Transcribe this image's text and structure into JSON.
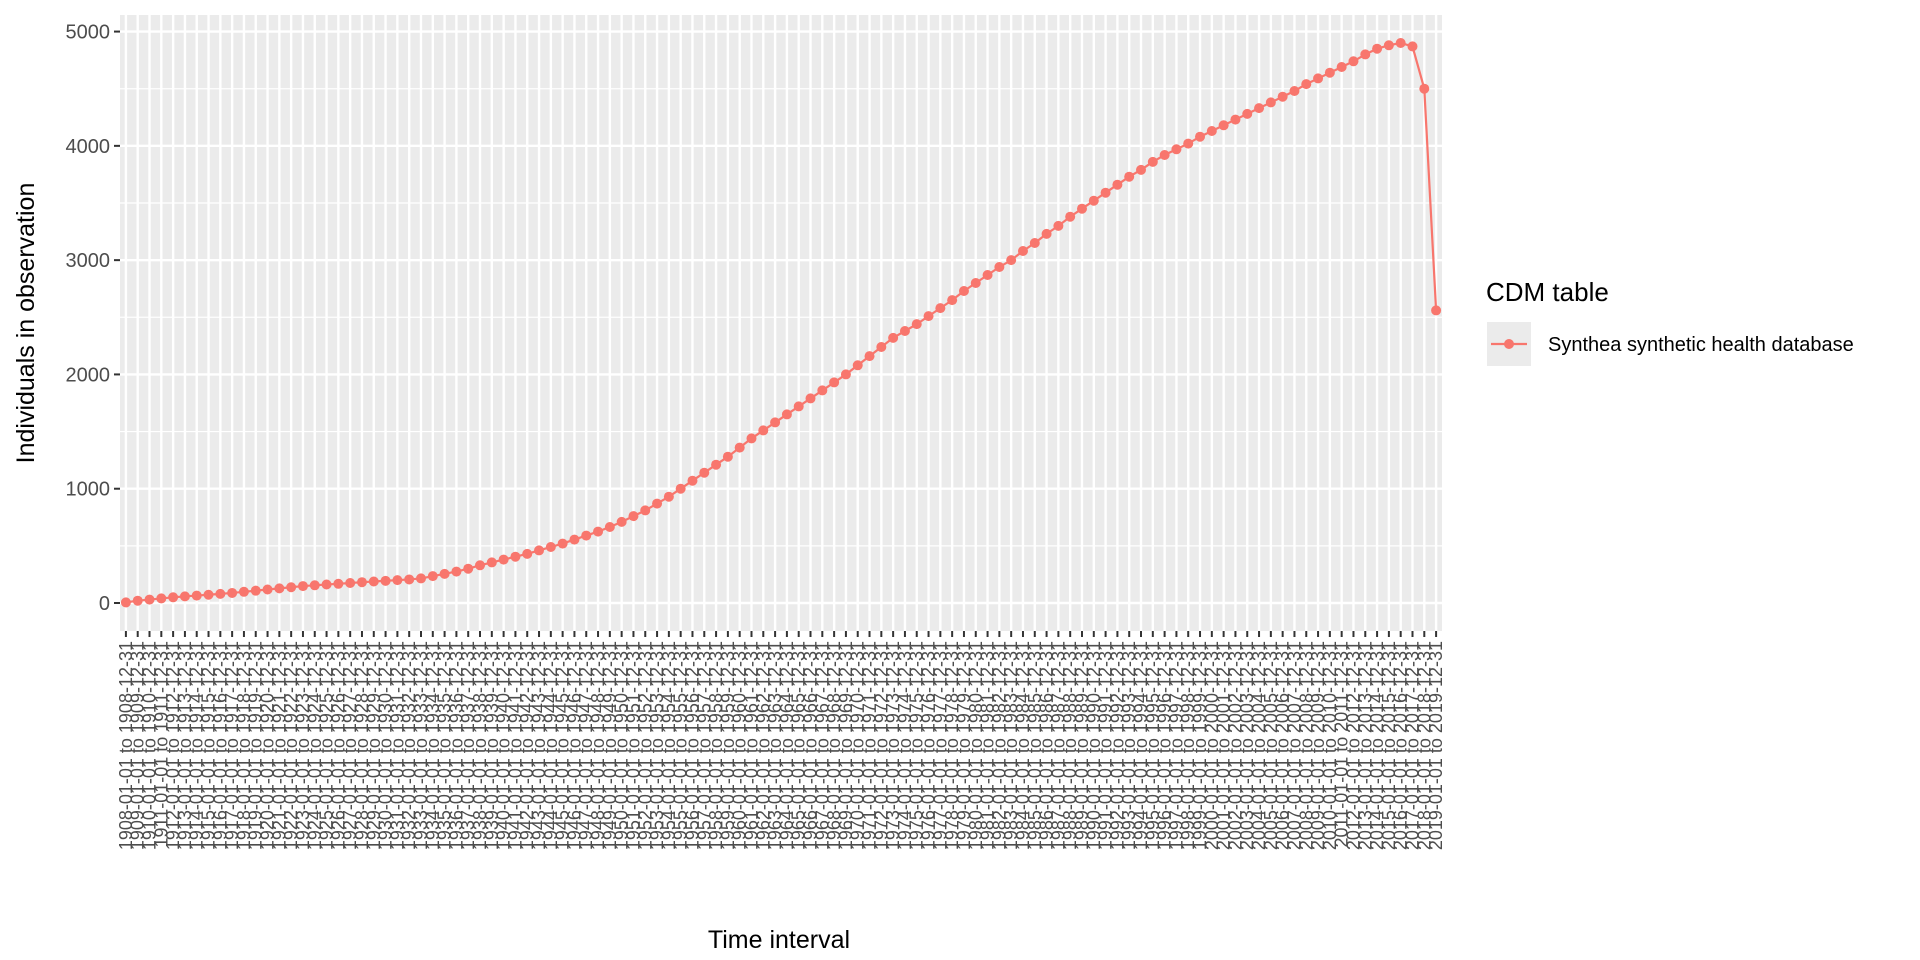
{
  "chart_data": {
    "type": "line",
    "x_label": "Time interval",
    "y_label": "Individuals in observation",
    "legend_title": "CDM table",
    "legend_position": "right",
    "grid": true,
    "ylim": [
      -245,
      5145
    ],
    "yticks": [
      0,
      1000,
      2000,
      3000,
      4000,
      5000
    ],
    "categories": [
      "1908-01-01 to 1908-12-31",
      "1909-01-01 to 1909-12-31",
      "1910-01-01 to 1910-12-31",
      "1911-01-01 to 1911-12-31",
      "1912-01-01 to 1912-12-31",
      "1913-01-01 to 1913-12-31",
      "1914-01-01 to 1914-12-31",
      "1915-01-01 to 1915-12-31",
      "1916-01-01 to 1916-12-31",
      "1917-01-01 to 1917-12-31",
      "1918-01-01 to 1918-12-31",
      "1919-01-01 to 1919-12-31",
      "1920-01-01 to 1920-12-31",
      "1921-01-01 to 1921-12-31",
      "1922-01-01 to 1922-12-31",
      "1923-01-01 to 1923-12-31",
      "1924-01-01 to 1924-12-31",
      "1925-01-01 to 1925-12-31",
      "1926-01-01 to 1926-12-31",
      "1927-01-01 to 1927-12-31",
      "1928-01-01 to 1928-12-31",
      "1929-01-01 to 1929-12-31",
      "1930-01-01 to 1930-12-31",
      "1931-01-01 to 1931-12-31",
      "1932-01-01 to 1932-12-31",
      "1933-01-01 to 1933-12-31",
      "1934-01-01 to 1934-12-31",
      "1935-01-01 to 1935-12-31",
      "1936-01-01 to 1936-12-31",
      "1937-01-01 to 1937-12-31",
      "1938-01-01 to 1938-12-31",
      "1939-01-01 to 1939-12-31",
      "1940-01-01 to 1940-12-31",
      "1941-01-01 to 1941-12-31",
      "1942-01-01 to 1942-12-31",
      "1943-01-01 to 1943-12-31",
      "1944-01-01 to 1944-12-31",
      "1945-01-01 to 1945-12-31",
      "1946-01-01 to 1946-12-31",
      "1947-01-01 to 1947-12-31",
      "1948-01-01 to 1948-12-31",
      "1949-01-01 to 1949-12-31",
      "1950-01-01 to 1950-12-31",
      "1951-01-01 to 1951-12-31",
      "1952-01-01 to 1952-12-31",
      "1953-01-01 to 1953-12-31",
      "1954-01-01 to 1954-12-31",
      "1955-01-01 to 1955-12-31",
      "1956-01-01 to 1956-12-31",
      "1957-01-01 to 1957-12-31",
      "1958-01-01 to 1958-12-31",
      "1959-01-01 to 1959-12-31",
      "1960-01-01 to 1960-12-31",
      "1961-01-01 to 1961-12-31",
      "1962-01-01 to 1962-12-31",
      "1963-01-01 to 1963-12-31",
      "1964-01-01 to 1964-12-31",
      "1965-01-01 to 1965-12-31",
      "1966-01-01 to 1966-12-31",
      "1967-01-01 to 1967-12-31",
      "1968-01-01 to 1968-12-31",
      "1969-01-01 to 1969-12-31",
      "1970-01-01 to 1970-12-31",
      "1971-01-01 to 1971-12-31",
      "1972-01-01 to 1972-12-31",
      "1973-01-01 to 1973-12-31",
      "1974-01-01 to 1974-12-31",
      "1975-01-01 to 1975-12-31",
      "1976-01-01 to 1976-12-31",
      "1977-01-01 to 1977-12-31",
      "1978-01-01 to 1978-12-31",
      "1979-01-01 to 1979-12-31",
      "1980-01-01 to 1980-12-31",
      "1981-01-01 to 1981-12-31",
      "1982-01-01 to 1982-12-31",
      "1983-01-01 to 1983-12-31",
      "1984-01-01 to 1984-12-31",
      "1985-01-01 to 1985-12-31",
      "1986-01-01 to 1986-12-31",
      "1987-01-01 to 1987-12-31",
      "1988-01-01 to 1988-12-31",
      "1989-01-01 to 1989-12-31",
      "1990-01-01 to 1990-12-31",
      "1991-01-01 to 1991-12-31",
      "1992-01-01 to 1992-12-31",
      "1993-01-01 to 1993-12-31",
      "1994-01-01 to 1994-12-31",
      "1995-01-01 to 1995-12-31",
      "1996-01-01 to 1996-12-31",
      "1997-01-01 to 1997-12-31",
      "1998-01-01 to 1998-12-31",
      "1999-01-01 to 1999-12-31",
      "2000-01-01 to 2000-12-31",
      "2001-01-01 to 2001-12-31",
      "2002-01-01 to 2002-12-31",
      "2003-01-01 to 2003-12-31",
      "2004-01-01 to 2004-12-31",
      "2005-01-01 to 2005-12-31",
      "2006-01-01 to 2006-12-31",
      "2007-01-01 to 2007-12-31",
      "2008-01-01 to 2008-12-31",
      "2009-01-01 to 2009-12-31",
      "2010-01-01 to 2010-12-31",
      "2011-01-01 to 2011-12-31",
      "2012-01-01 to 2012-12-31",
      "2013-01-01 to 2013-12-31",
      "2014-01-01 to 2014-12-31",
      "2015-01-01 to 2015-12-31",
      "2016-01-01 to 2016-12-31",
      "2017-01-01 to 2017-12-31",
      "2018-01-01 to 2018-12-31",
      "2019-01-01 to 2019-12-31"
    ],
    "series": [
      {
        "name": "Synthea synthetic health database",
        "color": "#F8766D",
        "values": [
          5,
          20,
          30,
          40,
          50,
          58,
          65,
          72,
          80,
          88,
          98,
          108,
          118,
          128,
          138,
          148,
          155,
          162,
          168,
          175,
          182,
          188,
          194,
          200,
          206,
          215,
          235,
          255,
          275,
          300,
          330,
          355,
          380,
          405,
          430,
          460,
          490,
          520,
          555,
          590,
          625,
          665,
          710,
          760,
          810,
          870,
          930,
          1000,
          1070,
          1140,
          1210,
          1280,
          1360,
          1440,
          1510,
          1580,
          1650,
          1720,
          1790,
          1860,
          1930,
          2000,
          2080,
          2160,
          2240,
          2320,
          2380,
          2440,
          2510,
          2580,
          2650,
          2730,
          2800,
          2870,
          2940,
          3000,
          3080,
          3150,
          3230,
          3300,
          3380,
          3450,
          3520,
          3590,
          3660,
          3730,
          3790,
          3860,
          3920,
          3970,
          4020,
          4080,
          4130,
          4180,
          4230,
          4280,
          4330,
          4380,
          4430,
          4480,
          4540,
          4590,
          4640,
          4690,
          4740,
          4800,
          4850,
          4880,
          4900,
          4870,
          4500,
          2560
        ]
      }
    ]
  }
}
